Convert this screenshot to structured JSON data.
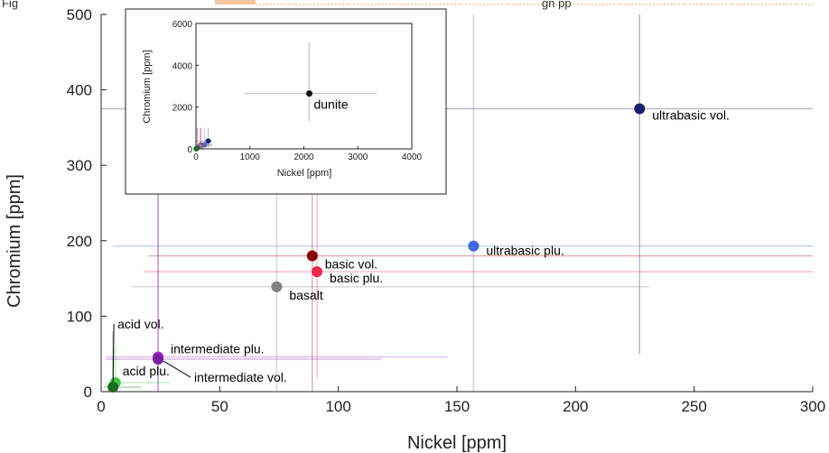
{
  "caption": {
    "prefix": "Fig",
    "suffix": "gn  pp"
  },
  "chart_data": {
    "type": "scatter",
    "xlabel": "Nickel [ppm]",
    "ylabel": "Chromium [ppm]",
    "xlim": [
      0,
      300
    ],
    "ylim": [
      0,
      500
    ],
    "xticks": [
      0,
      50,
      100,
      150,
      200,
      250,
      300
    ],
    "yticks": [
      0,
      100,
      200,
      300,
      400,
      500
    ],
    "grid": false,
    "series": [
      {
        "name": "ultrabasic vol.",
        "color": "#1a1f6e",
        "x": 227,
        "y": 375,
        "xerr": [
          0,
          300
        ],
        "yerr": [
          50,
          500
        ]
      },
      {
        "name": "ultrabasic plu.",
        "color": "#4169e1",
        "x": 157,
        "y": 193,
        "xerr": [
          5,
          300
        ],
        "yerr": [
          0,
          500
        ]
      },
      {
        "name": "basic vol.",
        "color": "#8b0000",
        "x": 89,
        "y": 180,
        "xerr": [
          20,
          300
        ],
        "yerr": [
          0,
          500
        ]
      },
      {
        "name": "basic plu.",
        "color": "#e8294b",
        "x": 91,
        "y": 159,
        "xerr": [
          18,
          300
        ],
        "yerr": [
          18,
          500
        ]
      },
      {
        "name": "basalt",
        "color": "#808080",
        "x": 74,
        "y": 139,
        "xerr": [
          13,
          231
        ],
        "yerr": [
          0,
          500
        ]
      },
      {
        "name": "intermediate plu.",
        "color": "#9a30c8",
        "x": 24,
        "y": 46,
        "xerr": [
          2,
          146
        ],
        "yerr": [
          0,
          500
        ]
      },
      {
        "name": "intermediate vol.",
        "color": "#7b1fa2",
        "x": 24,
        "y": 43,
        "xerr": [
          2,
          118
        ],
        "yerr": [
          0,
          500
        ]
      },
      {
        "name": "acid plu.",
        "color": "#3ec83e",
        "x": 6,
        "y": 12,
        "xerr": [
          2,
          29
        ],
        "yerr": [
          0,
          60
        ]
      },
      {
        "name": "acid vol.",
        "color": "#1e6b1e",
        "x": 5,
        "y": 6,
        "xerr": [
          1,
          17
        ],
        "yerr": [
          0,
          80
        ]
      }
    ],
    "inset": {
      "xlabel": "Nickel [ppm]",
      "ylabel": "Chromium [ppm]",
      "xlim": [
        0,
        4000
      ],
      "ylim": [
        0,
        6000
      ],
      "xticks": [
        0,
        1000,
        2000,
        3000,
        4000
      ],
      "yticks": [
        0,
        2000,
        4000,
        6000
      ],
      "series": [
        {
          "name": "dunite",
          "color": "#111111",
          "x": 2100,
          "y": 2650,
          "xerr": [
            900,
            3350
          ],
          "yerr": [
            1300,
            5100
          ]
        }
      ]
    }
  }
}
